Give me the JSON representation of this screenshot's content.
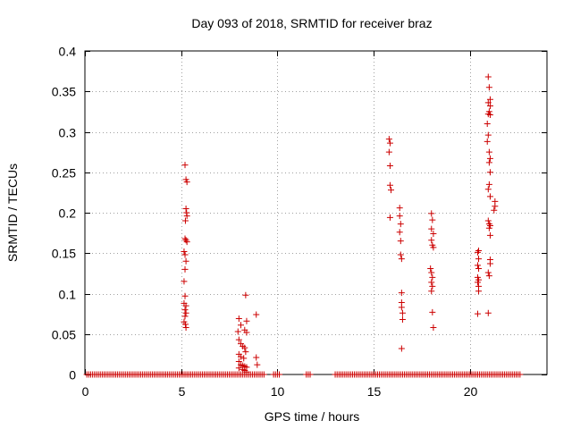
{
  "chart_data": {
    "type": "scatter",
    "title": "Day 093 of 2018, SRMTID for receiver braz",
    "xlabel": "GPS time / hours",
    "ylabel": "SRMTID / TECUs",
    "xlim": [
      0,
      24
    ],
    "ylim": [
      0,
      0.4
    ],
    "xticks": [
      0,
      5,
      10,
      15,
      20
    ],
    "xtick_labels": [
      "0",
      "5",
      "10",
      "15",
      "20"
    ],
    "yticks": [
      0,
      0.05,
      0.1,
      0.15,
      0.2,
      0.25,
      0.3,
      0.35,
      0.4
    ],
    "ytick_labels": [
      "0",
      "0.05",
      "0.1",
      "0.15",
      "0.2",
      "0.25",
      "0.3",
      "0.35",
      "0.4"
    ],
    "grid": true,
    "marker": "plus",
    "marker_color": "#cc0000",
    "zero_line_segments": [
      [
        0.1,
        9.3
      ],
      [
        9.8,
        10.1
      ],
      [
        11.5,
        11.7
      ],
      [
        13.0,
        22.6
      ]
    ],
    "series": [
      {
        "name": "SRMTID",
        "points": [
          [
            5.2,
            0.259
          ],
          [
            5.25,
            0.241
          ],
          [
            5.3,
            0.238
          ],
          [
            5.25,
            0.205
          ],
          [
            5.28,
            0.2
          ],
          [
            5.3,
            0.196
          ],
          [
            5.22,
            0.19
          ],
          [
            5.2,
            0.168
          ],
          [
            5.25,
            0.166
          ],
          [
            5.3,
            0.164
          ],
          [
            5.15,
            0.152
          ],
          [
            5.2,
            0.148
          ],
          [
            5.25,
            0.14
          ],
          [
            5.2,
            0.13
          ],
          [
            5.15,
            0.115
          ],
          [
            5.2,
            0.097
          ],
          [
            5.15,
            0.088
          ],
          [
            5.25,
            0.085
          ],
          [
            5.2,
            0.08
          ],
          [
            5.25,
            0.076
          ],
          [
            5.2,
            0.072
          ],
          [
            5.15,
            0.065
          ],
          [
            5.22,
            0.062
          ],
          [
            5.25,
            0.058
          ],
          [
            8.0,
            0.069
          ],
          [
            8.1,
            0.061
          ],
          [
            8.35,
            0.098
          ],
          [
            8.4,
            0.066
          ],
          [
            8.3,
            0.055
          ],
          [
            8.4,
            0.052
          ],
          [
            7.95,
            0.053
          ],
          [
            8.0,
            0.043
          ],
          [
            8.1,
            0.038
          ],
          [
            8.2,
            0.035
          ],
          [
            8.3,
            0.033
          ],
          [
            8.35,
            0.028
          ],
          [
            8.0,
            0.025
          ],
          [
            8.1,
            0.022
          ],
          [
            8.25,
            0.02
          ],
          [
            8.0,
            0.016
          ],
          [
            8.1,
            0.012
          ],
          [
            8.2,
            0.011
          ],
          [
            8.3,
            0.01
          ],
          [
            8.4,
            0.009
          ],
          [
            8.0,
            0.008
          ],
          [
            8.2,
            0.006
          ],
          [
            8.3,
            0.005
          ],
          [
            8.4,
            0.003
          ],
          [
            8.9,
            0.074
          ],
          [
            8.9,
            0.021
          ],
          [
            8.95,
            0.012
          ],
          [
            15.8,
            0.291
          ],
          [
            15.85,
            0.286
          ],
          [
            15.8,
            0.275
          ],
          [
            15.85,
            0.258
          ],
          [
            15.85,
            0.234
          ],
          [
            15.9,
            0.228
          ],
          [
            15.85,
            0.194
          ],
          [
            16.35,
            0.206
          ],
          [
            16.35,
            0.196
          ],
          [
            16.4,
            0.186
          ],
          [
            16.35,
            0.176
          ],
          [
            16.4,
            0.165
          ],
          [
            16.4,
            0.148
          ],
          [
            16.45,
            0.143
          ],
          [
            16.45,
            0.101
          ],
          [
            16.45,
            0.089
          ],
          [
            16.45,
            0.083
          ],
          [
            16.5,
            0.076
          ],
          [
            16.5,
            0.068
          ],
          [
            16.45,
            0.032
          ],
          [
            18.0,
            0.199
          ],
          [
            18.05,
            0.191
          ],
          [
            18.0,
            0.18
          ],
          [
            18.1,
            0.174
          ],
          [
            18.0,
            0.166
          ],
          [
            18.05,
            0.16
          ],
          [
            18.1,
            0.157
          ],
          [
            17.95,
            0.131
          ],
          [
            18.0,
            0.126
          ],
          [
            18.05,
            0.12
          ],
          [
            18.0,
            0.114
          ],
          [
            18.05,
            0.109
          ],
          [
            18.0,
            0.103
          ],
          [
            18.05,
            0.077
          ],
          [
            18.1,
            0.058
          ],
          [
            20.95,
            0.368
          ],
          [
            21.0,
            0.355
          ],
          [
            21.05,
            0.34
          ],
          [
            20.95,
            0.336
          ],
          [
            21.05,
            0.332
          ],
          [
            21.0,
            0.325
          ],
          [
            20.95,
            0.322
          ],
          [
            21.05,
            0.321
          ],
          [
            20.9,
            0.31
          ],
          [
            20.95,
            0.296
          ],
          [
            20.9,
            0.288
          ],
          [
            21.0,
            0.275
          ],
          [
            21.05,
            0.267
          ],
          [
            21.0,
            0.262
          ],
          [
            21.05,
            0.25
          ],
          [
            21.0,
            0.235
          ],
          [
            20.95,
            0.229
          ],
          [
            21.05,
            0.22
          ],
          [
            21.3,
            0.214
          ],
          [
            21.3,
            0.208
          ],
          [
            21.25,
            0.203
          ],
          [
            20.95,
            0.19
          ],
          [
            21.0,
            0.186
          ],
          [
            21.05,
            0.184
          ],
          [
            21.0,
            0.181
          ],
          [
            21.05,
            0.172
          ],
          [
            20.45,
            0.153
          ],
          [
            20.4,
            0.151
          ],
          [
            20.45,
            0.143
          ],
          [
            21.05,
            0.142
          ],
          [
            21.05,
            0.137
          ],
          [
            20.4,
            0.135
          ],
          [
            20.45,
            0.131
          ],
          [
            20.95,
            0.126
          ],
          [
            21.0,
            0.122
          ],
          [
            20.4,
            0.12
          ],
          [
            20.45,
            0.117
          ],
          [
            20.4,
            0.114
          ],
          [
            20.45,
            0.109
          ],
          [
            20.45,
            0.103
          ],
          [
            20.4,
            0.075
          ],
          [
            20.95,
            0.076
          ]
        ]
      }
    ]
  }
}
